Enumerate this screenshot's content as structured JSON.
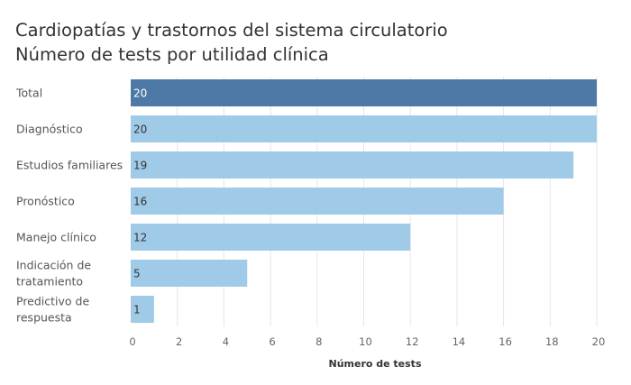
{
  "chart_data": {
    "type": "bar",
    "orientation": "horizontal",
    "title": "Cardiopatías y trastornos del sistema circulatorio",
    "subtitle": "Número de tests por utilidad clínica",
    "categories": [
      [
        "Total"
      ],
      [
        "Diagnóstico"
      ],
      [
        "Estudios familiares"
      ],
      [
        "Pronóstico"
      ],
      [
        "Manejo clínico"
      ],
      [
        "Indicación de",
        "tratamiento"
      ],
      [
        "Predictivo de",
        "respuesta"
      ]
    ],
    "values": [
      20,
      20,
      19,
      16,
      12,
      5,
      1
    ],
    "value_labels": [
      "20",
      "20",
      "19",
      "16",
      "12",
      "5",
      "1"
    ],
    "bar_colors": [
      "#4e79a7",
      "#a0cbe8",
      "#a0cbe8",
      "#a0cbe8",
      "#a0cbe8",
      "#a0cbe8",
      "#a0cbe8"
    ],
    "xlabel": "Número de tests",
    "ylabel": "",
    "xlim": [
      0,
      20
    ],
    "xticks": [
      0,
      2,
      4,
      6,
      8,
      10,
      12,
      14,
      16,
      18,
      20
    ],
    "xtick_labels": [
      "0",
      "2",
      "4",
      "6",
      "8",
      "10",
      "12",
      "14",
      "16",
      "18",
      "20"
    ],
    "grid": true,
    "legend": "none"
  }
}
